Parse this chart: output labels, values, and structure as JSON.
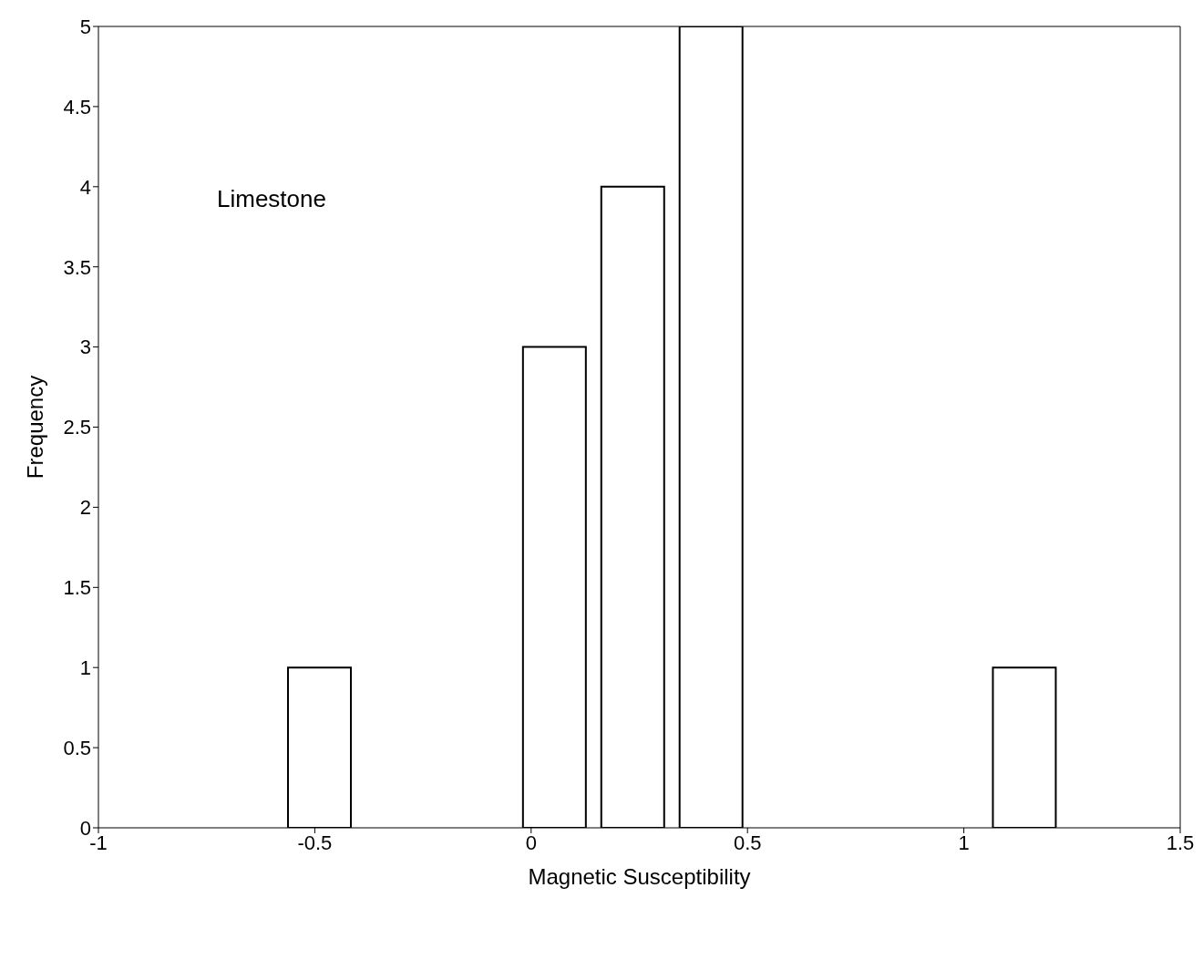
{
  "chart_data": {
    "type": "histogram",
    "xlabel": "Magnetic Susceptibility",
    "ylabel": "Frequency",
    "annotations": [
      "Limestone"
    ],
    "bins": [
      -0.58,
      -0.399,
      -0.218,
      -0.037,
      0.144,
      0.325,
      0.506,
      0.687,
      0.868,
      1.049,
      1.23
    ],
    "values": [
      1,
      0,
      0,
      3,
      4,
      5,
      0,
      0,
      0,
      1
    ],
    "color": "#ffffff",
    "xlim": [
      -1,
      1.5
    ],
    "xticks": [
      -1,
      -0.5,
      0,
      0.5,
      1,
      1.5
    ],
    "ylim": [
      0,
      5
    ],
    "yticks": [
      0,
      0.5,
      1,
      1.5,
      2,
      2.5,
      3,
      3.5,
      4,
      4.5,
      5
    ],
    "grid": false,
    "legend": false
  }
}
